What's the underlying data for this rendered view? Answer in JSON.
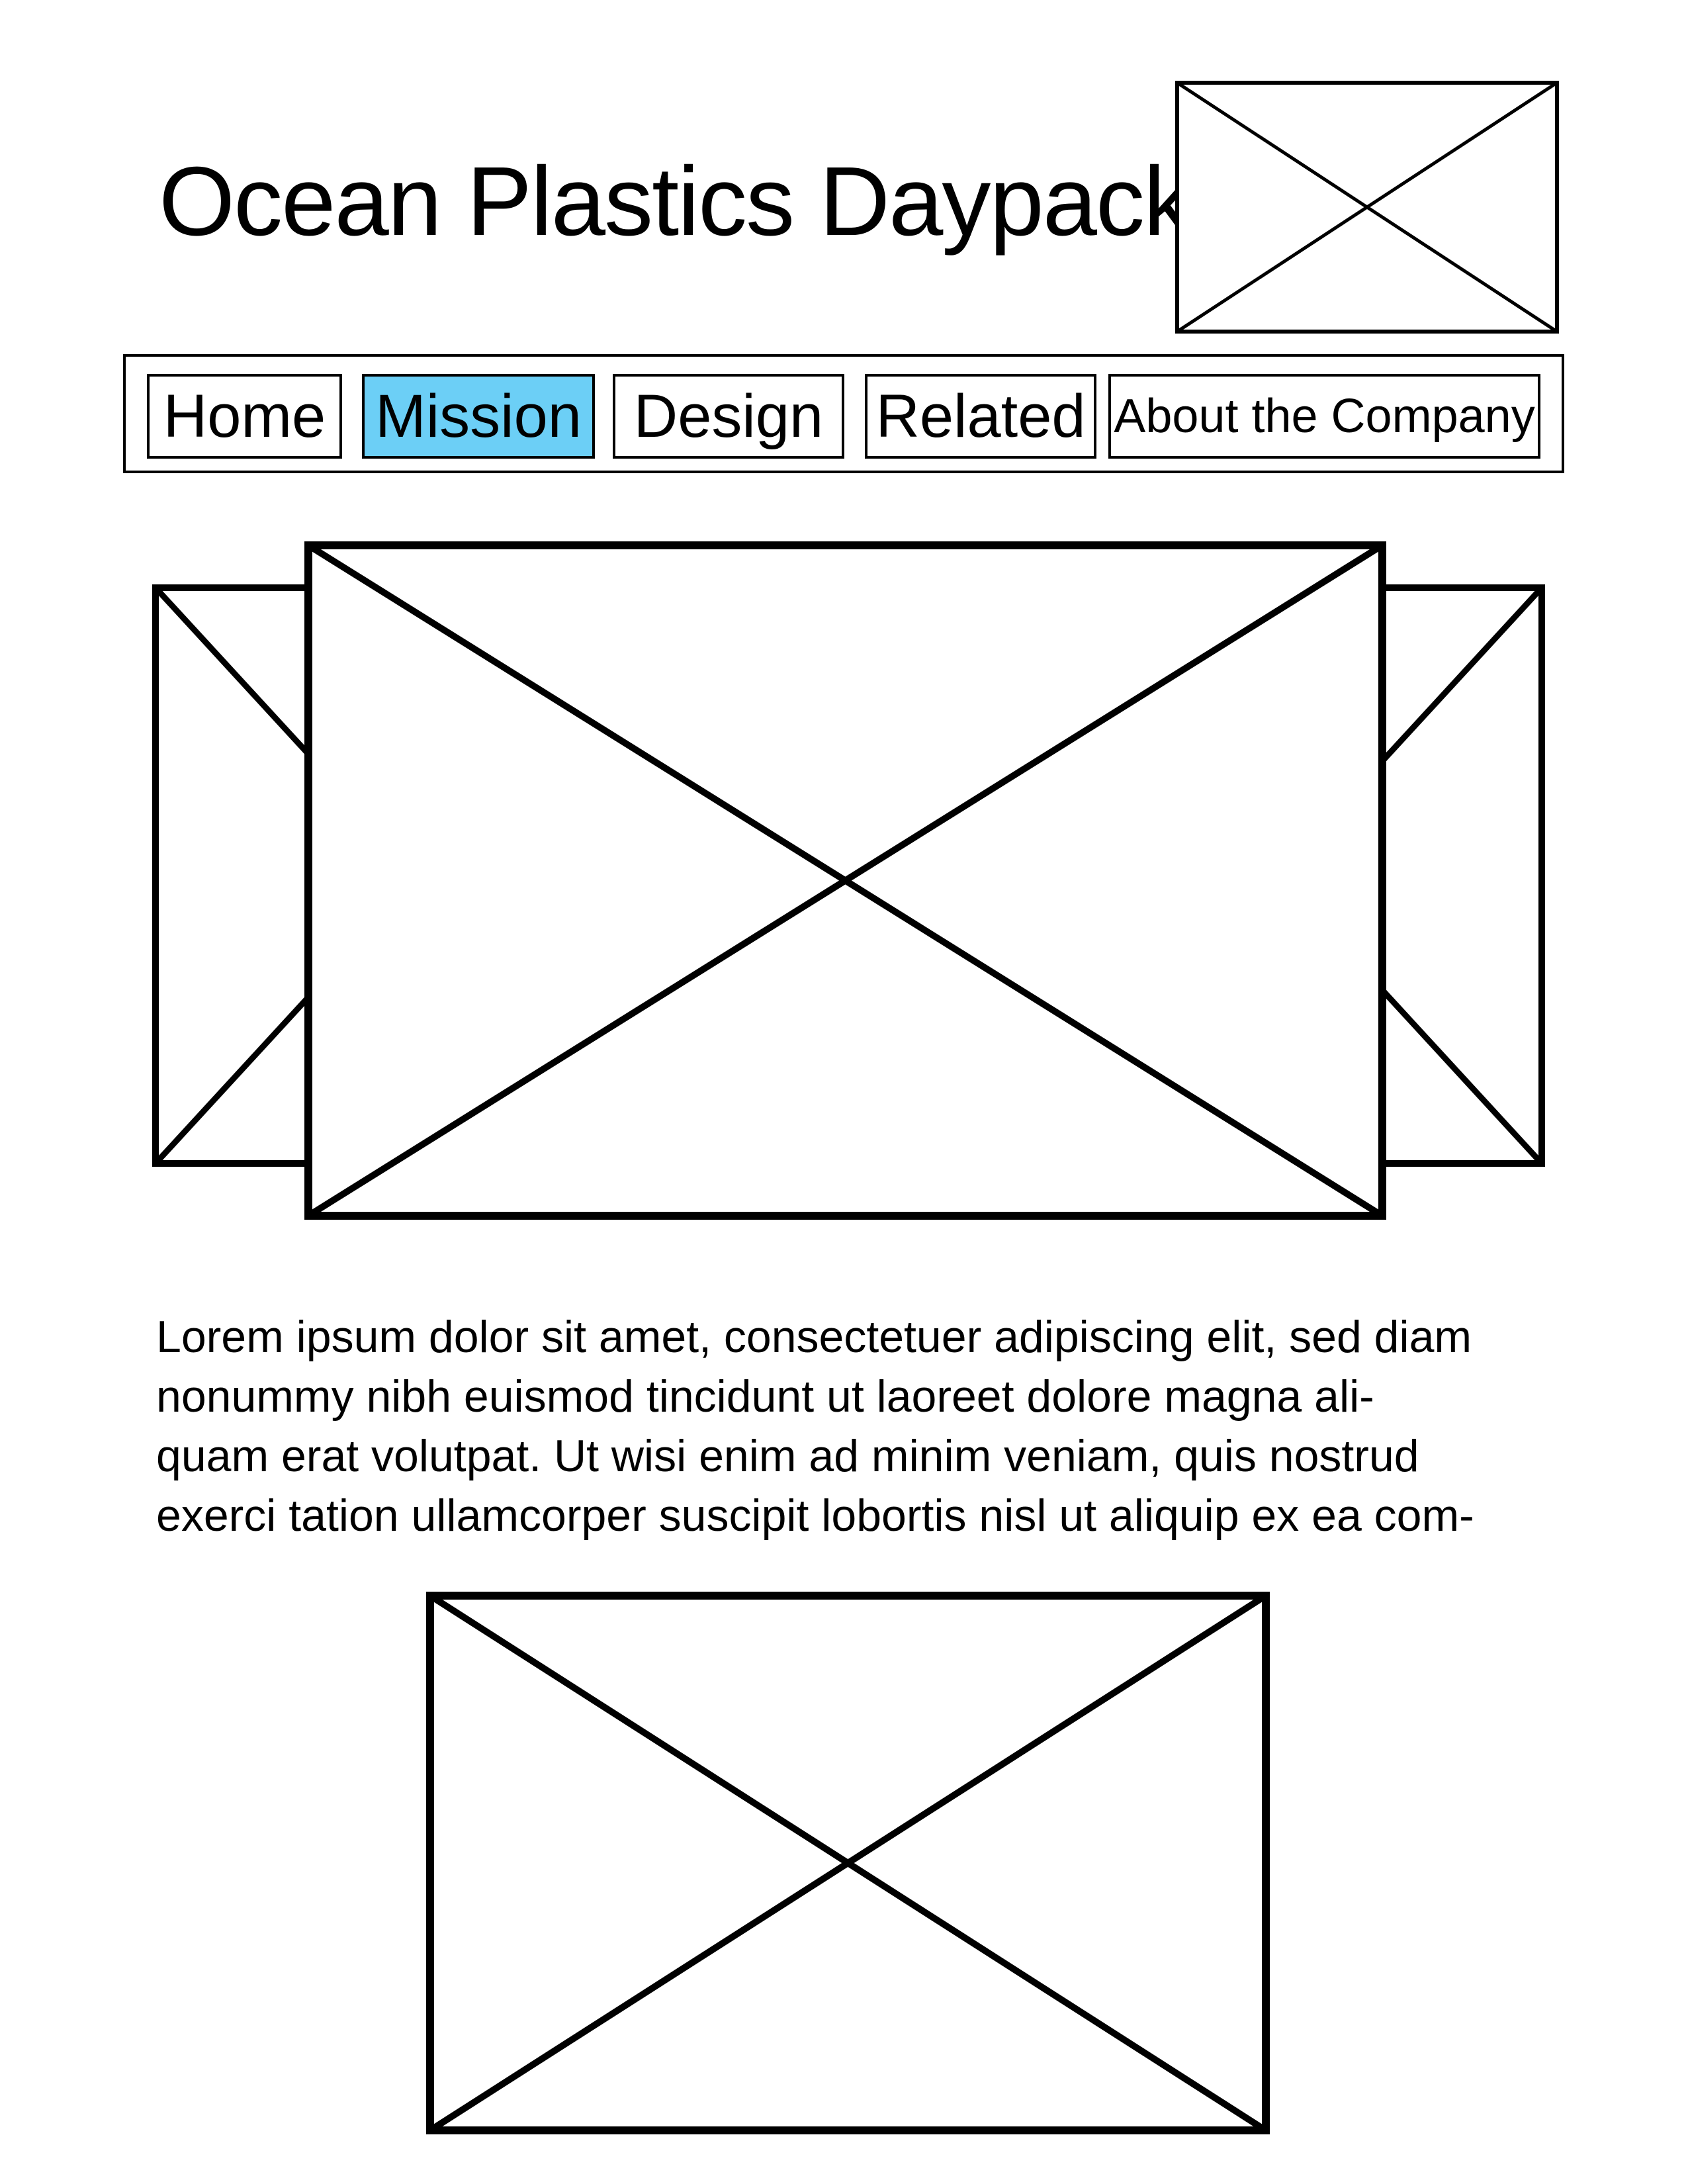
{
  "header": {
    "title": "Ocean Plastics Daypack",
    "logo_icon": "image-placeholder-icon"
  },
  "nav": {
    "active_color": "#6ccff6",
    "items": [
      {
        "label": "Home",
        "active": false
      },
      {
        "label": "Mission",
        "active": true
      },
      {
        "label": "Design",
        "active": false
      },
      {
        "label": "Related",
        "active": false
      },
      {
        "label": "About the Company",
        "active": false
      }
    ]
  },
  "carousel": {
    "icon": "image-placeholder-icon"
  },
  "body": {
    "lines": [
      "Lorem ipsum dolor sit amet, consectetuer adipiscing elit, sed diam",
      "nonummy nibh euismod tincidunt ut laoreet dolore magna ali-",
      "quam erat volutpat. Ut wisi enim ad minim veniam, quis nostrud",
      "exerci tation ullamcorper suscipit lobortis nisl ut aliquip ex ea com-"
    ]
  },
  "bottom_image": {
    "icon": "image-placeholder-icon"
  }
}
